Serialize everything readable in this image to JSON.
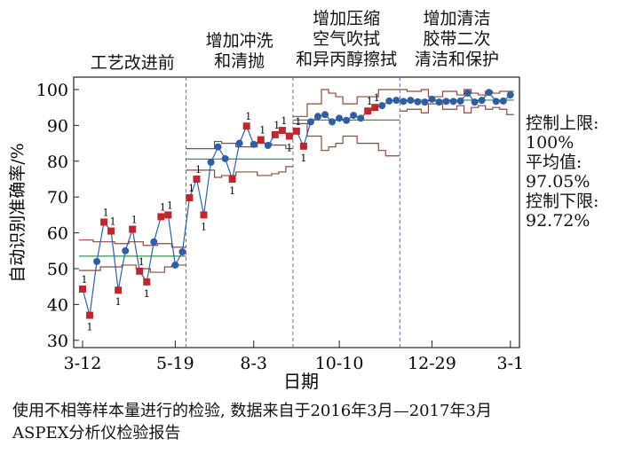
{
  "chart_data": {
    "type": "line",
    "xlabel": "日期",
    "ylabel": "自动识别准确率/%",
    "ylim": [
      30,
      100
    ],
    "yticks": [
      30,
      40,
      50,
      60,
      70,
      80,
      90,
      100
    ],
    "xtick_labels": [
      {
        "label": "3-12",
        "index": 0
      },
      {
        "label": "5-19",
        "index": 13
      },
      {
        "label": "8-3",
        "index": 24
      },
      {
        "label": "10-10",
        "index": 36
      },
      {
        "label": "12-29",
        "index": 49
      },
      {
        "label": "3-1",
        "index": 60
      }
    ],
    "phases": [
      {
        "label": [
          "工艺改进前"
        ],
        "start": 0,
        "end": 14,
        "center": 53.5
      },
      {
        "label": [
          "增加冲洗",
          "和清抛"
        ],
        "start": 15,
        "end": 29,
        "center": 80.6
      },
      {
        "label": [
          "增加压缩",
          "空气吹拭",
          "和异丙醇擦拭"
        ],
        "start": 30,
        "end": 44,
        "center": 91.5
      },
      {
        "label": [
          "增加清洁",
          "胶带二次",
          "清洁和保护"
        ],
        "start": 45,
        "end": 60,
        "center": 97.05
      }
    ],
    "values": [
      44.3,
      37,
      52,
      63,
      60.5,
      44,
      55,
      61,
      49.3,
      46.3,
      57.5,
      64.5,
      65,
      51,
      54.7,
      69.8,
      75,
      65,
      79.7,
      84,
      80.7,
      75,
      85,
      89.8,
      84.7,
      86,
      84.4,
      87.4,
      88.6,
      87,
      88.4,
      84.2,
      91,
      92.5,
      93,
      91,
      92,
      91.4,
      92.8,
      92,
      94,
      95,
      95.5,
      96.8,
      97,
      96.7,
      97,
      96.6,
      96.5,
      97.3,
      96.5,
      96.7,
      96.7,
      96.8,
      99,
      96.5,
      97,
      99.2,
      96.7,
      96.8,
      98.5
    ],
    "out_of_control": [
      0,
      1,
      3,
      4,
      5,
      7,
      8,
      9,
      11,
      12,
      15,
      16,
      17,
      21,
      23,
      25,
      27,
      28,
      29,
      30,
      31,
      40,
      41
    ],
    "ucl": [
      58,
      58,
      57.5,
      57.5,
      57.5,
      57,
      57,
      57.5,
      57.5,
      56.5,
      56.5,
      57,
      57,
      56,
      56,
      83.5,
      83.5,
      83.5,
      83.5,
      85.5,
      85,
      85,
      84,
      84,
      84,
      85,
      85,
      84.5,
      84.5,
      83.5,
      92.5,
      92.5,
      96,
      96,
      100,
      99,
      98,
      96,
      96,
      98,
      98,
      98,
      100,
      100,
      100,
      100,
      99.5,
      99.5,
      100,
      98,
      98,
      99.5,
      99.5,
      98.5,
      100,
      99,
      98.5,
      99.5,
      99,
      99.5,
      99.5
    ],
    "lcl": [
      49.5,
      49.5,
      49.5,
      50.5,
      50.5,
      50.5,
      51,
      51,
      50,
      50,
      49,
      49,
      50.5,
      51,
      51,
      77.5,
      77.5,
      77.5,
      77.5,
      75.5,
      76,
      76,
      77,
      77,
      77,
      76,
      76,
      76.5,
      77,
      78.5,
      90.5,
      90.5,
      87,
      87,
      83,
      84,
      85,
      87,
      87,
      85,
      85,
      85,
      83,
      81.5,
      81.5,
      94,
      94.5,
      94.5,
      93.5,
      96,
      96,
      94.5,
      94.5,
      95.5,
      93.5,
      95,
      95.5,
      94.5,
      95,
      94.5,
      93
    ],
    "colors": {
      "in_control": "#2e5fa3",
      "out_of_control": "#c0272d",
      "center": "#3f8f4f",
      "limits": "#8b4a3c",
      "divider": "#6a6aaa"
    },
    "out_of_control_marker": "1",
    "annotations": [
      {
        "label": "控制上限:",
        "value": "100%"
      },
      {
        "label": "平均值:",
        "value": "97.05%"
      },
      {
        "label": "控制下限:",
        "value": "92.72%"
      }
    ]
  },
  "caption": [
    "使用不相等样本量进行的检验, 数据来自于2016年3月—2017年3月",
    "ASPEX分析仪检验报告"
  ]
}
